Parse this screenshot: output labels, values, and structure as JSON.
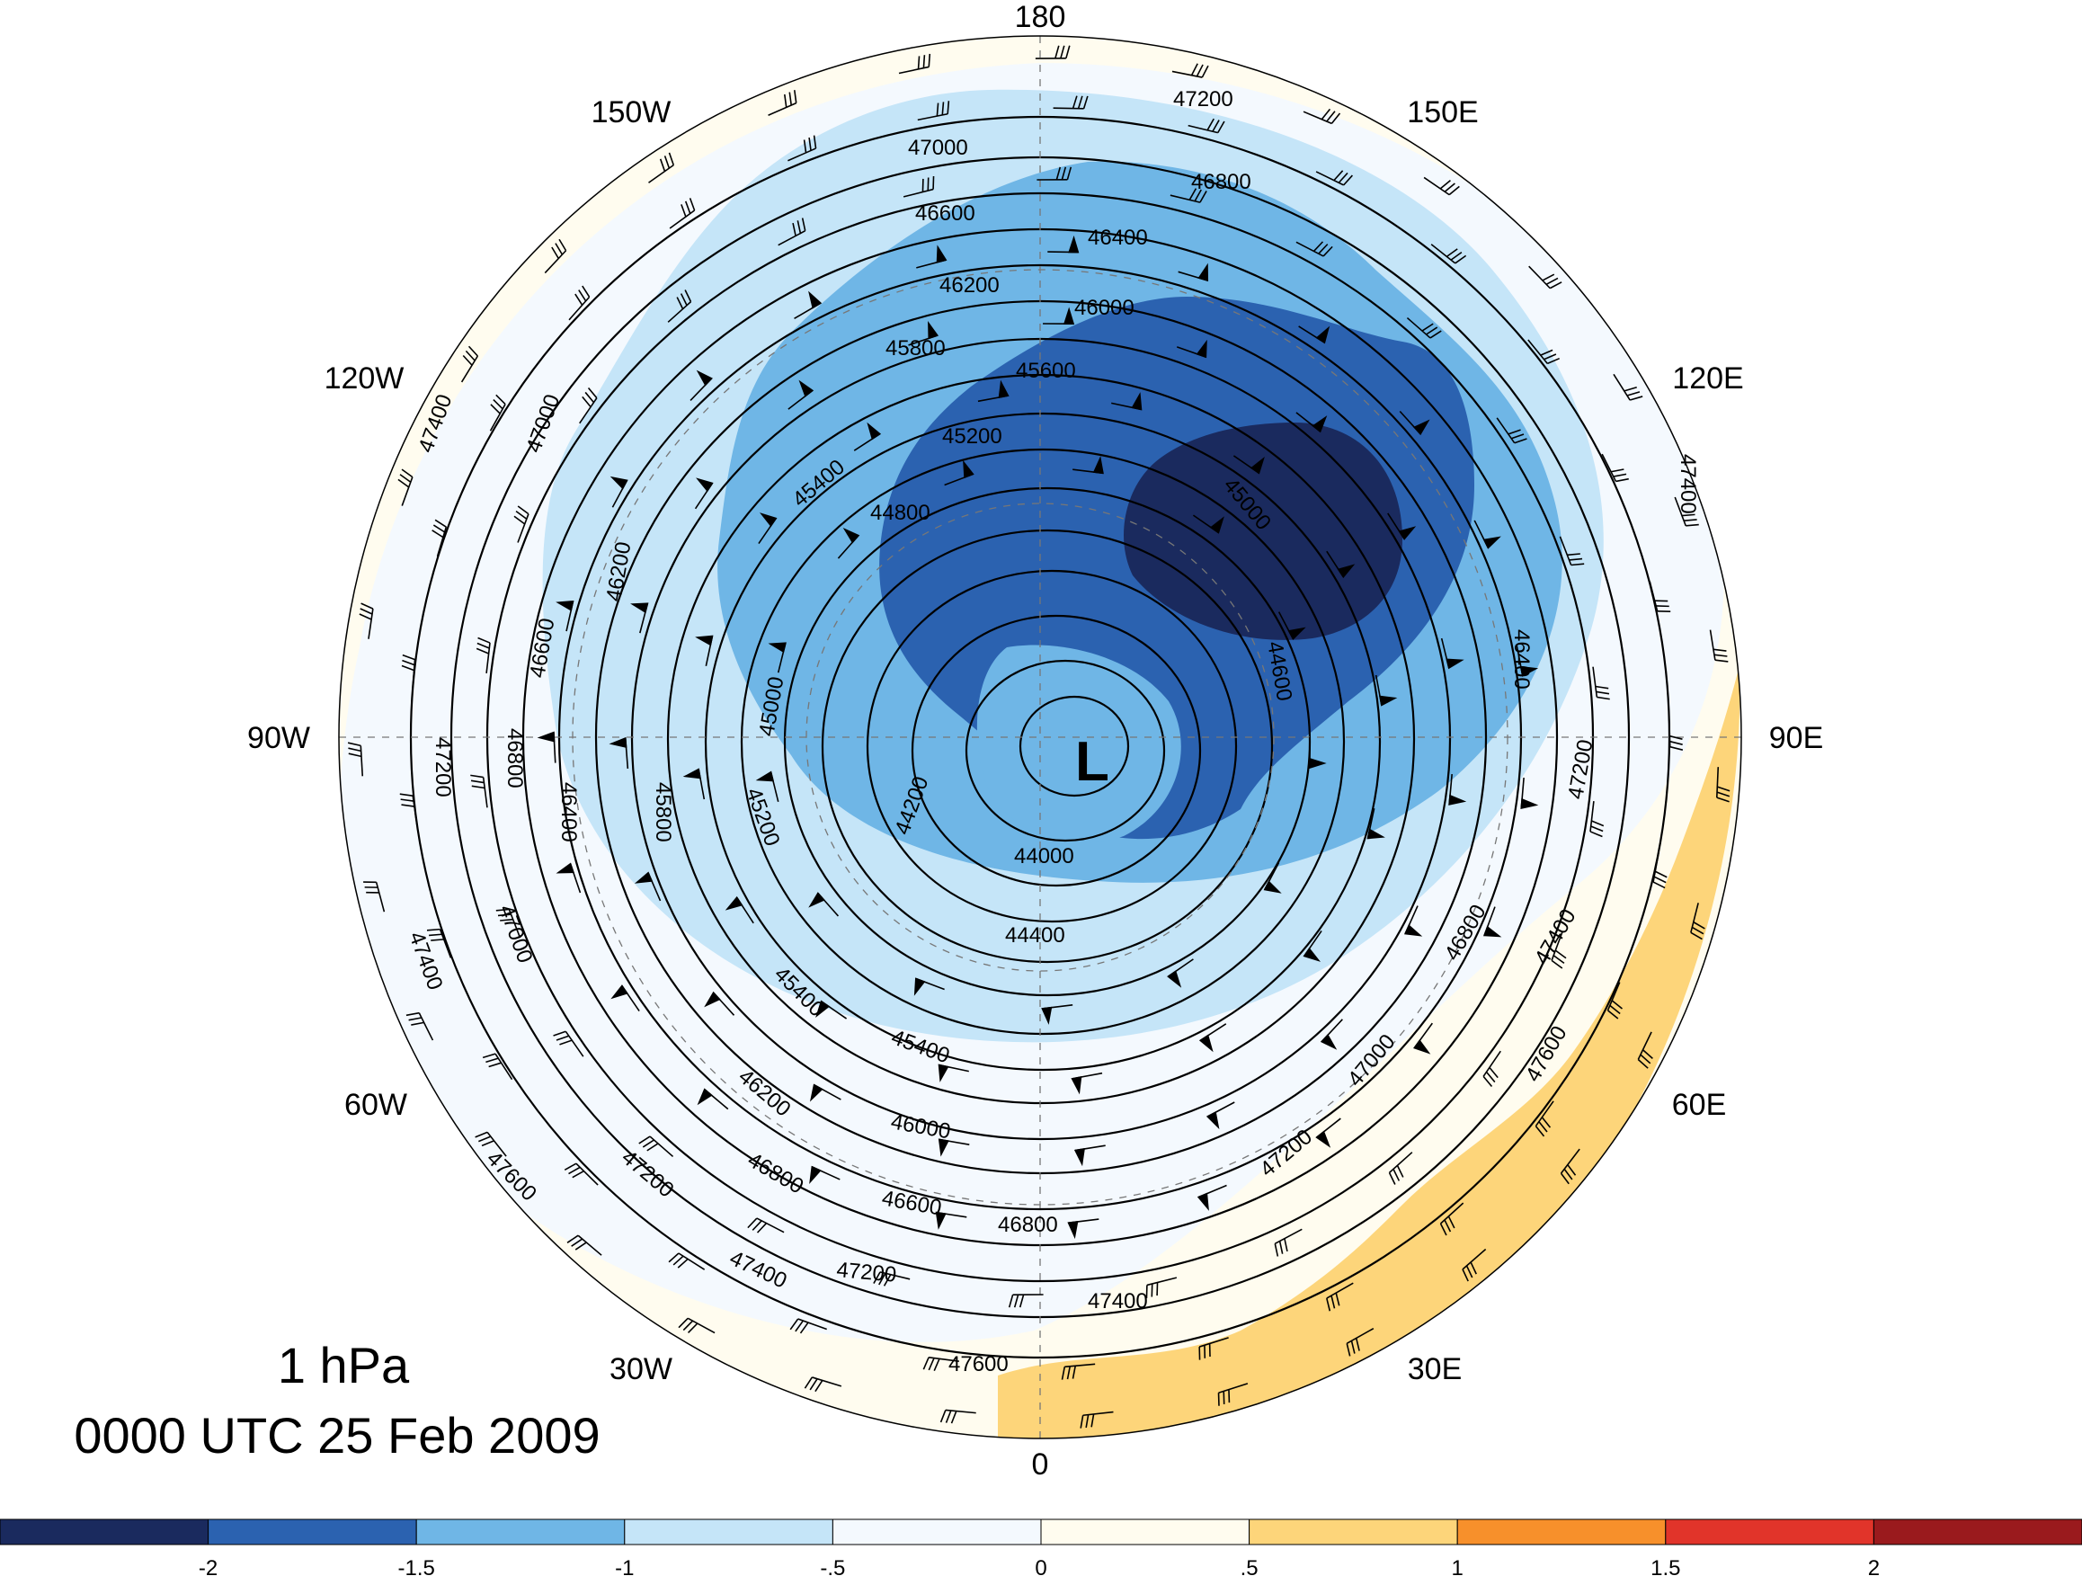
{
  "title": {
    "level": "1 hPa",
    "datetime": "0000 UTC 25 Feb 2009"
  },
  "center_marker": "L",
  "longitude_labels": [
    {
      "text": "180",
      "lon": 180
    },
    {
      "text": "150E",
      "lon": 150
    },
    {
      "text": "120E",
      "lon": 120
    },
    {
      "text": "90E",
      "lon": 90
    },
    {
      "text": "60E",
      "lon": 60
    },
    {
      "text": "30E",
      "lon": 30
    },
    {
      "text": "0",
      "lon": 0
    },
    {
      "text": "30W",
      "lon": -30
    },
    {
      "text": "60W",
      "lon": -60
    },
    {
      "text": "90W",
      "lon": -90
    },
    {
      "text": "120W",
      "lon": -120
    },
    {
      "text": "150W",
      "lon": -150
    }
  ],
  "contour_labels": [
    "44000",
    "44200",
    "44400",
    "44600",
    "44800",
    "45000",
    "45200",
    "45400",
    "45600",
    "45800",
    "46000",
    "46200",
    "46400",
    "46600",
    "46800",
    "47000",
    "47200",
    "47400",
    "47600"
  ],
  "shading_legend": {
    "tick_labels": [
      "-2",
      "-1.5",
      "-1",
      "-.5",
      "0",
      ".5",
      "1",
      "1.5",
      "2"
    ],
    "colors": [
      "#1a2a5e",
      "#2b62b0",
      "#6fb6e6",
      "#c5e5f8",
      "#f4f9fe",
      "#fffcef",
      "#fdd57a",
      "#f7902b",
      "#e1342a",
      "#9a1a1d"
    ]
  },
  "colors": {
    "deep_blue": "#1a2a5e",
    "dark_blue": "#2b62b0",
    "mid_blue": "#6fb6e6",
    "light_blue": "#c5e5f8",
    "pale_blue": "#f4f9fe",
    "cream": "#fffcef",
    "yellow": "#fdd57a"
  }
}
